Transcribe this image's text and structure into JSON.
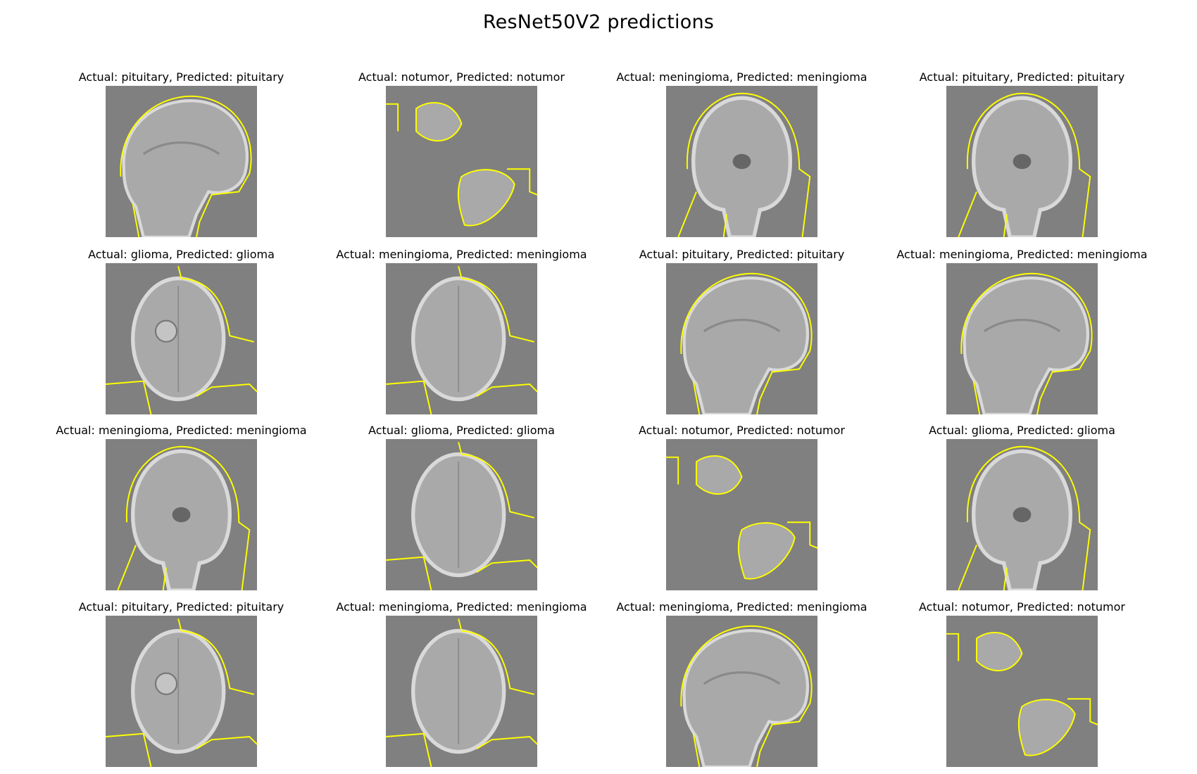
{
  "figure": {
    "title": "ResNet50V2 predictions"
  },
  "colors": {
    "background": "#808080",
    "boundary": "#ffff00"
  },
  "panels": [
    {
      "title": "Actual: pituitary, Predicted: pituitary",
      "view": "sagittal-head-icon"
    },
    {
      "title": "Actual: notumor, Predicted: notumor",
      "view": "fragments-icon"
    },
    {
      "title": "Actual: meningioma, Predicted: meningioma",
      "view": "coronal-head-icon"
    },
    {
      "title": "Actual: pituitary, Predicted: pituitary",
      "view": "coronal-head-icon"
    },
    {
      "title": "Actual: glioma, Predicted: glioma",
      "view": "axial-head-icon"
    },
    {
      "title": "Actual: meningioma, Predicted: meningioma",
      "view": "axial-head-icon"
    },
    {
      "title": "Actual: pituitary, Predicted: pituitary",
      "view": "sagittal-head-icon"
    },
    {
      "title": "Actual: meningioma, Predicted: meningioma",
      "view": "sagittal-head-icon"
    },
    {
      "title": "Actual: meningioma, Predicted: meningioma",
      "view": "coronal-head-icon"
    },
    {
      "title": "Actual: glioma, Predicted: glioma",
      "view": "axial-head-icon"
    },
    {
      "title": "Actual: notumor, Predicted: notumor",
      "view": "fragments-icon"
    },
    {
      "title": "Actual: glioma, Predicted: glioma",
      "view": "coronal-head-icon"
    },
    {
      "title": "Actual: pituitary, Predicted: pituitary",
      "view": "axial-head-icon"
    },
    {
      "title": "Actual: meningioma, Predicted: meningioma",
      "view": "axial-head-icon"
    },
    {
      "title": "Actual: meningioma, Predicted: meningioma",
      "view": "sagittal-head-icon"
    },
    {
      "title": "Actual: notumor, Predicted: notumor",
      "view": "fragments-icon"
    }
  ]
}
